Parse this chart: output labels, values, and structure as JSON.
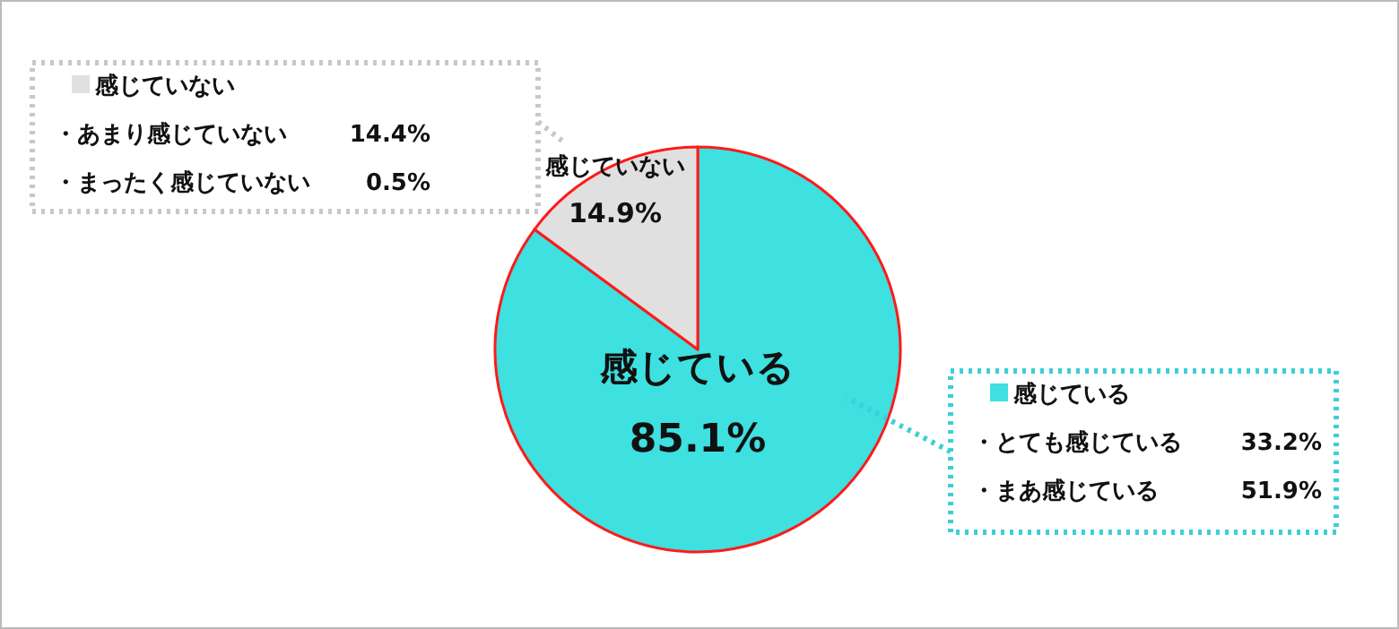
{
  "chart_data": {
    "type": "pie",
    "categories": [
      "感じている",
      "感じていない"
    ],
    "values": [
      85.1,
      14.9
    ],
    "value_labels": [
      "85.1%",
      "14.9%"
    ],
    "colors": [
      "#3ee0e0",
      "#e0e0e0"
    ],
    "legend": false,
    "annotations": [
      "感じていない",
      "・あまり感じていない　14.4%",
      "・まったく感じていない　0.5%",
      "感じている",
      "・とても感じている　33.2%",
      "・まあ感じている　51.9%"
    ]
  }
}
